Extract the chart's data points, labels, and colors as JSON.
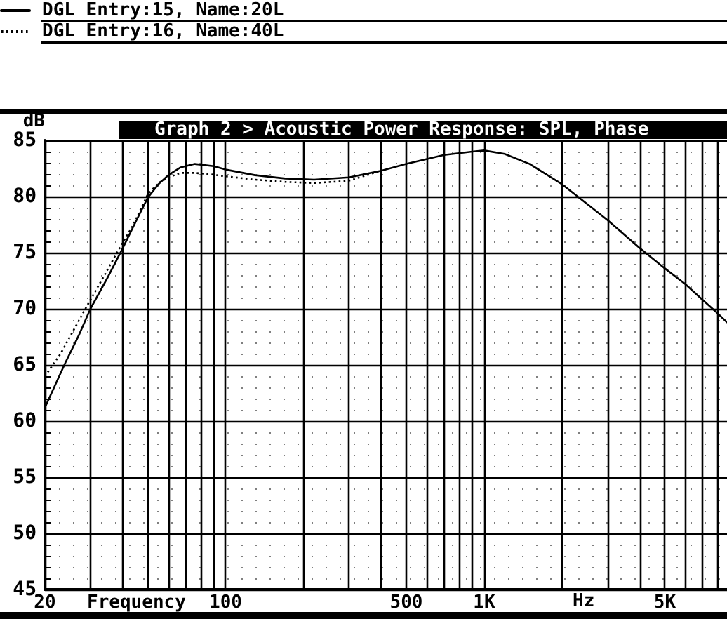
{
  "chart_data": {
    "type": "line",
    "title": "Graph 2 > Acoustic Power Response: SPL, Phase",
    "xlabel": "Frequency",
    "ylabel": "dB",
    "annotations": [
      "Hz"
    ],
    "log": "x",
    "xlim": [
      20,
      8700
    ],
    "xticks": [
      {
        "value": 20,
        "label": "20"
      },
      {
        "value": 30,
        "label": null
      },
      {
        "value": 40,
        "label": null
      },
      {
        "value": 50,
        "label": null
      },
      {
        "value": 60,
        "label": null
      },
      {
        "value": 70,
        "label": null
      },
      {
        "value": 80,
        "label": null
      },
      {
        "value": 90,
        "label": null
      },
      {
        "value": 100,
        "label": "100"
      },
      {
        "value": 200,
        "label": null
      },
      {
        "value": 300,
        "label": null
      },
      {
        "value": 400,
        "label": null
      },
      {
        "value": 500,
        "label": "500"
      },
      {
        "value": 600,
        "label": null
      },
      {
        "value": 700,
        "label": null
      },
      {
        "value": 800,
        "label": null
      },
      {
        "value": 900,
        "label": null
      },
      {
        "value": 1000,
        "label": "1K"
      },
      {
        "value": 2000,
        "label": null
      },
      {
        "value": 3000,
        "label": null
      },
      {
        "value": 4000,
        "label": null
      },
      {
        "value": 5000,
        "label": "5K"
      },
      {
        "value": 6000,
        "label": null
      },
      {
        "value": 7000,
        "label": null
      },
      {
        "value": 8000,
        "label": null
      }
    ],
    "ylim": [
      45,
      85
    ],
    "yticks": [
      45,
      50,
      55,
      60,
      65,
      70,
      75,
      80,
      85
    ],
    "grid": true,
    "legend": "top left",
    "marker": "none",
    "series": [
      {
        "name": "DGL Entry:15, Name:20L",
        "color": "#000000",
        "line_style": "solid",
        "x": [
          20,
          24,
          27,
          30,
          35,
          40,
          45,
          50,
          55,
          60,
          67,
          76,
          90,
          100,
          130,
          170,
          220,
          300,
          400,
          500,
          700,
          900,
          1000,
          1200,
          1500,
          2000,
          2300,
          3000,
          4000,
          5000,
          6000,
          7000,
          8000,
          8700
        ],
        "values": [
          61.2,
          65.2,
          67.6,
          70,
          72.8,
          75.4,
          77.8,
          79.9,
          81.1,
          81.9,
          82.6,
          82.9,
          82.7,
          82.4,
          81.9,
          81.6,
          81.5,
          81.7,
          82.3,
          82.9,
          83.7,
          84,
          84.1,
          83.8,
          82.9,
          81.1,
          80,
          77.9,
          75.4,
          73.6,
          72.2,
          70.8,
          69.6,
          68.8
        ]
      },
      {
        "name": "DGL Entry:16, Name:40L",
        "color": "#000000",
        "line_style": "dotted",
        "x": [
          20,
          23,
          29,
          34,
          38,
          44,
          50,
          55,
          60,
          67,
          76,
          86,
          100,
          130,
          170,
          220,
          300,
          400
        ],
        "values": [
          64,
          66,
          70.2,
          73,
          75,
          77.5,
          80.2,
          81.2,
          81.7,
          82.1,
          82.1,
          82,
          81.8,
          81.5,
          81.3,
          81.2,
          81.4,
          82.3
        ]
      }
    ]
  }
}
